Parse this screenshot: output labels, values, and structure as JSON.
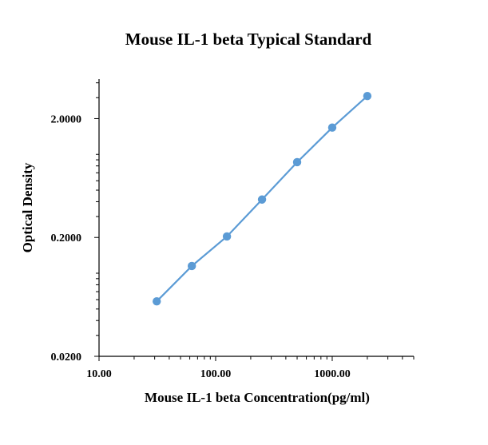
{
  "chart_data": {
    "type": "line",
    "title": "Mouse IL-1 beta Typical Standard",
    "xlabel": "Mouse IL-1 beta Concentration(pg/ml)",
    "ylabel": "Optical Density",
    "x_scale": "log",
    "y_scale": "log",
    "xlim": [
      10,
      5000
    ],
    "ylim": [
      0.02,
      4.3
    ],
    "x_ticks": [
      {
        "value": 10,
        "label": "10.00"
      },
      {
        "value": 100,
        "label": "100.00"
      },
      {
        "value": 1000,
        "label": "1000.00"
      }
    ],
    "y_ticks": [
      {
        "value": 0.02,
        "label": "0.0200"
      },
      {
        "value": 0.2,
        "label": "0.2000"
      },
      {
        "value": 2,
        "label": "2.0000"
      }
    ],
    "grid": false,
    "legend": "none",
    "series": [
      {
        "color": "#5B9BD5",
        "x": [
          31.25,
          62.5,
          125,
          250,
          500,
          1000,
          2000
        ],
        "y": [
          0.058,
          0.115,
          0.204,
          0.417,
          0.86,
          1.68,
          3.1
        ]
      }
    ]
  }
}
